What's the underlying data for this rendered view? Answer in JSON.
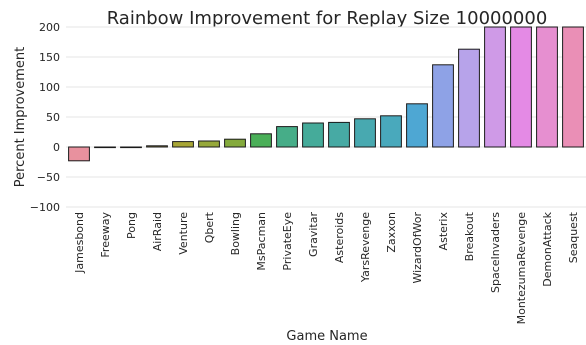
{
  "chart_data": {
    "type": "bar",
    "title": "Rainbow Improvement for Replay Size 10000000",
    "xlabel": "Game Name",
    "ylabel": "Percent Improvement",
    "ylim": [
      -100,
      200
    ],
    "yticks": [
      "−100",
      "−50",
      "0",
      "50",
      "100",
      "150",
      "200"
    ],
    "grid": true,
    "categories": [
      "Jamesbond",
      "Freeway",
      "Pong",
      "AirRaid",
      "Venture",
      "Qbert",
      "Bowling",
      "MsPacman",
      "PrivateEye",
      "Gravitar",
      "Asteroids",
      "YarsRevenge",
      "Zaxxon",
      "WizardOfWor",
      "Asterix",
      "Breakout",
      "SpaceInvaders",
      "MontezumaRevenge",
      "DemonAttack",
      "Seaquest"
    ],
    "values": [
      -23,
      0,
      0,
      2,
      9,
      10,
      13,
      22,
      34,
      40,
      41,
      47,
      52,
      72,
      137,
      163,
      210,
      210,
      210,
      210
    ],
    "colors": [
      "#e8919e",
      "#d89b86",
      "#c9a46a",
      "#b9a74d",
      "#a8a636",
      "#96a83a",
      "#84aa3c",
      "#4aaf58",
      "#46ad88",
      "#45ab9a",
      "#47aaa4",
      "#48a9b0",
      "#49a9bc",
      "#4ea7d3",
      "#8ea2e6",
      "#b7a3ea",
      "#cf9ae7",
      "#e48ae5",
      "#e68fd0",
      "#ea8fb6"
    ]
  }
}
